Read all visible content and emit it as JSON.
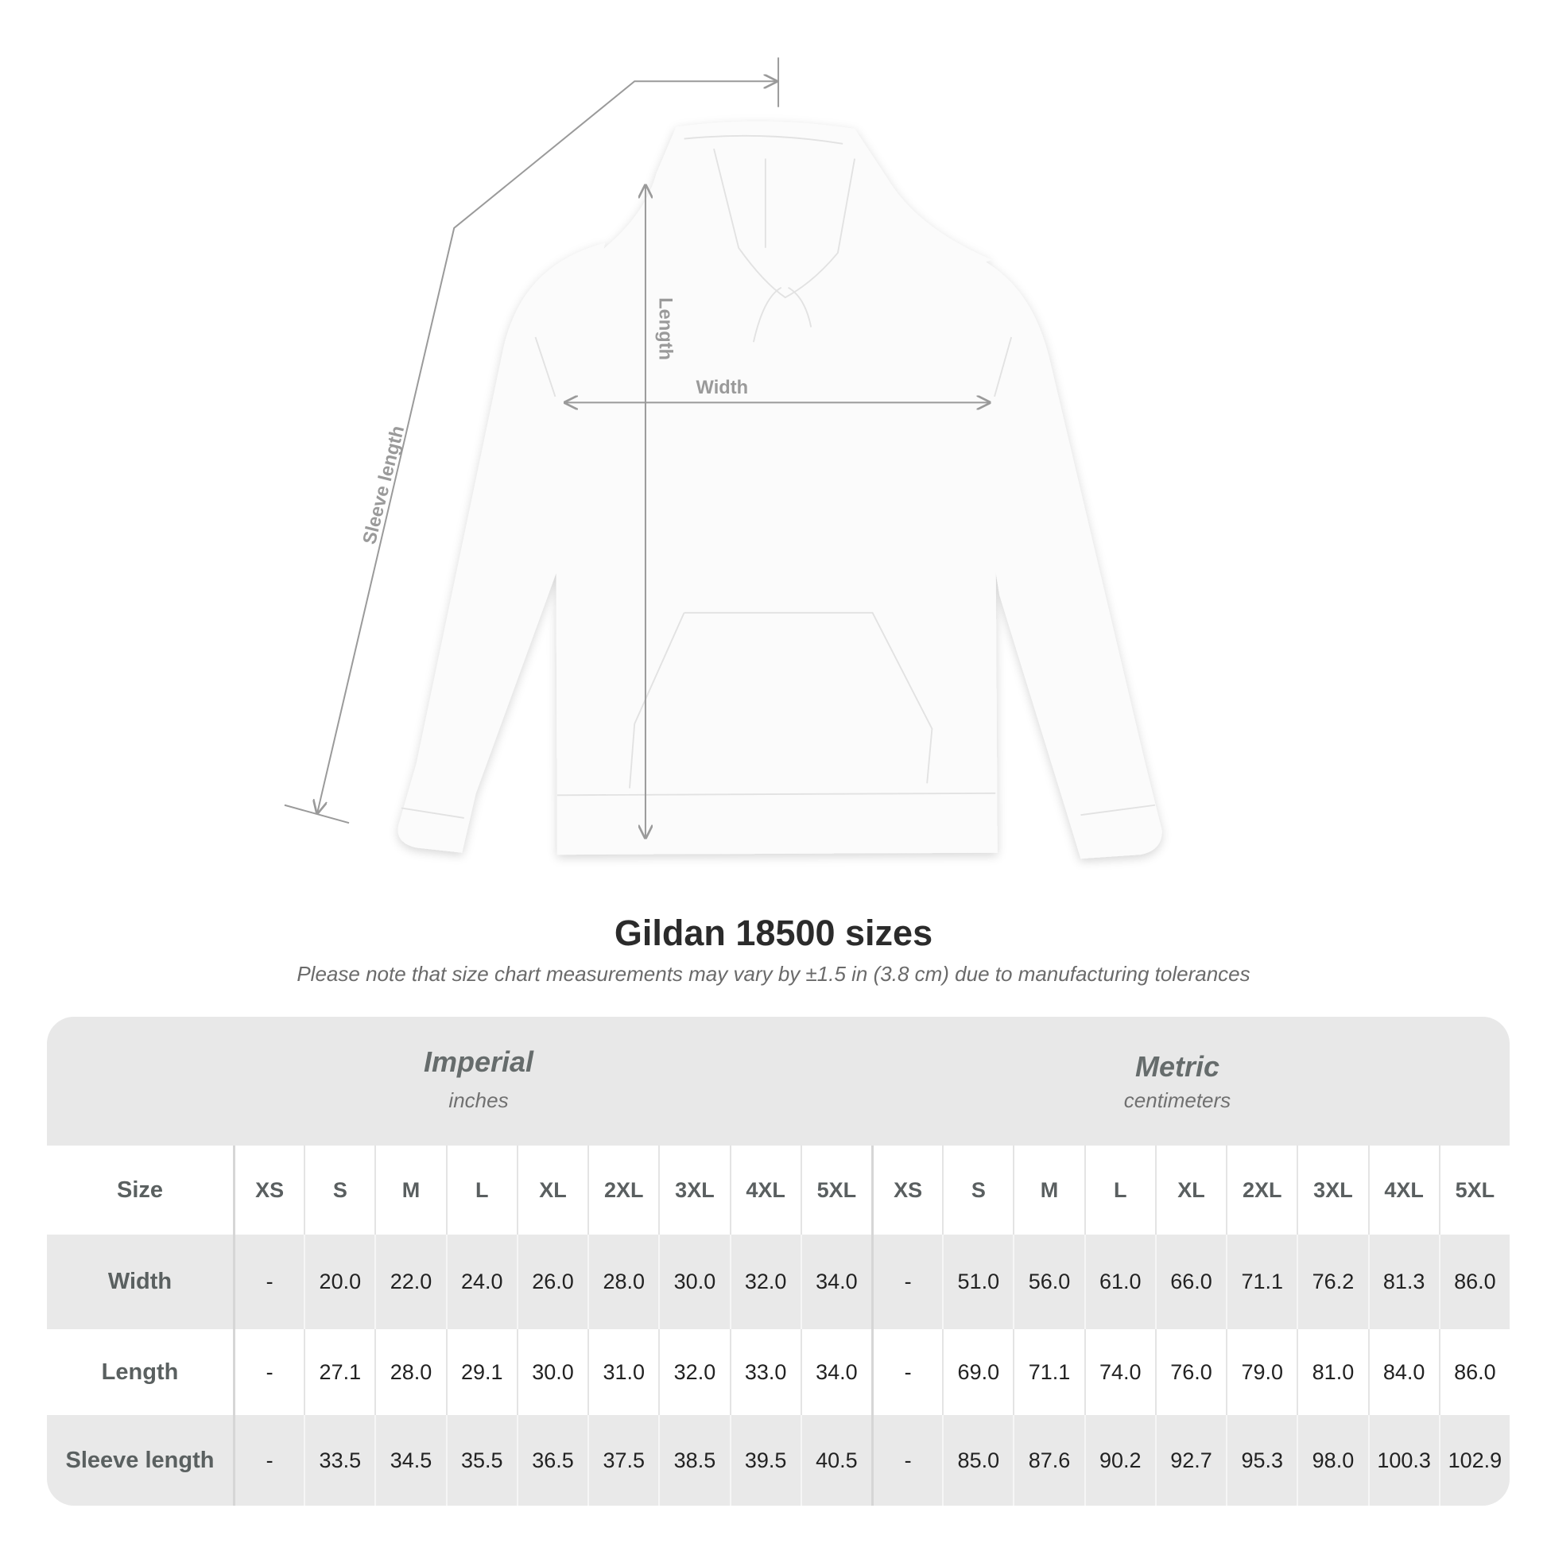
{
  "diagram": {
    "labels": {
      "sleeve_length": "Sleeve length",
      "length": "Length",
      "width": "Width"
    },
    "colors": {
      "measure_line": "#9a9a9a",
      "garment": "#fbfbfb"
    }
  },
  "title": "Gildan 18500 sizes",
  "subtitle": "Please note that size chart measurements may vary by ±1.5 in (3.8 cm) due to manufacturing tolerances",
  "table": {
    "imperial": {
      "title": "Imperial",
      "unit": "inches"
    },
    "metric": {
      "title": "Metric",
      "unit": "centimeters"
    },
    "size_label": "Size",
    "sizes": [
      "XS",
      "S",
      "M",
      "L",
      "XL",
      "2XL",
      "3XL",
      "4XL",
      "5XL"
    ],
    "rows": [
      {
        "label": "Width",
        "imperial": [
          "-",
          "20.0",
          "22.0",
          "24.0",
          "26.0",
          "28.0",
          "30.0",
          "32.0",
          "34.0"
        ],
        "metric": [
          "-",
          "51.0",
          "56.0",
          "61.0",
          "66.0",
          "71.1",
          "76.2",
          "81.3",
          "86.0"
        ]
      },
      {
        "label": "Length",
        "imperial": [
          "-",
          "27.1",
          "28.0",
          "29.1",
          "30.0",
          "31.0",
          "32.0",
          "33.0",
          "34.0"
        ],
        "metric": [
          "-",
          "69.0",
          "71.1",
          "74.0",
          "76.0",
          "79.0",
          "81.0",
          "84.0",
          "86.0"
        ]
      },
      {
        "label": "Sleeve length",
        "imperial": [
          "-",
          "33.5",
          "34.5",
          "35.5",
          "36.5",
          "37.5",
          "38.5",
          "39.5",
          "40.5"
        ],
        "metric": [
          "-",
          "85.0",
          "87.6",
          "90.2",
          "92.7",
          "95.3",
          "98.0",
          "100.3",
          "102.9"
        ]
      }
    ],
    "colors": {
      "header_band": "#e8e8e8",
      "gray_row": "#e9e9e9",
      "label_text": "#5a6060"
    }
  }
}
